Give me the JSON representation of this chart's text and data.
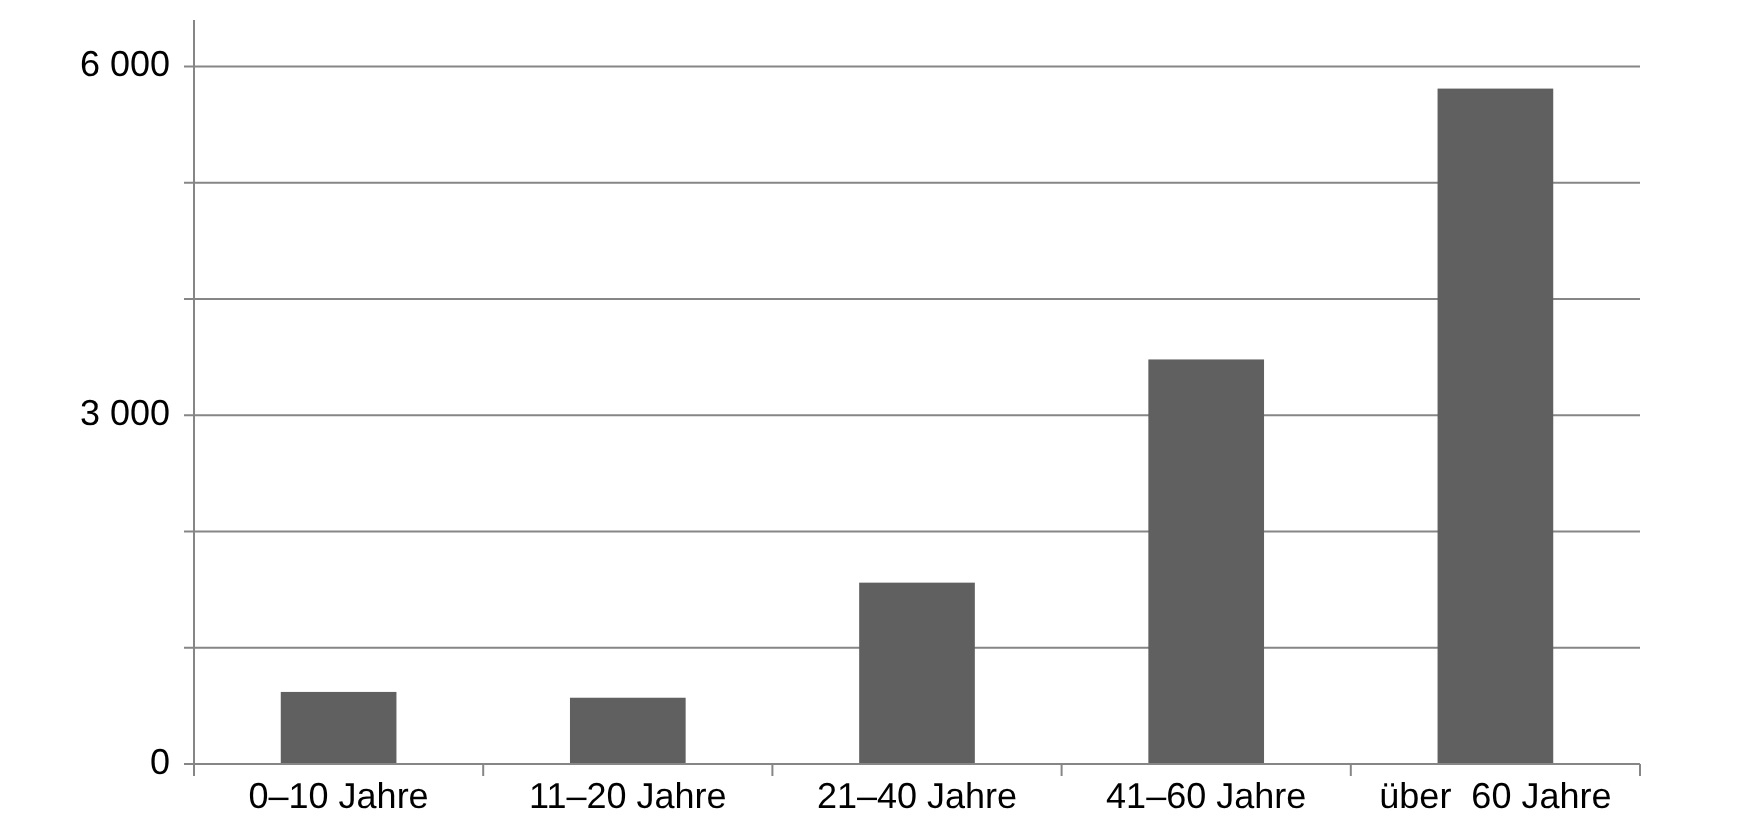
{
  "chart_data": {
    "type": "bar",
    "categories": [
      "0–10 Jahre",
      "11–20 Jahre",
      "21–40 Jahre",
      "41–60 Jahre",
      "über  60 Jahre"
    ],
    "values": [
      620,
      570,
      1560,
      3480,
      5810
    ],
    "color": "#606060",
    "ylim": [
      0,
      6400
    ],
    "yticks": [
      0,
      {
        "value": 1000,
        "label": null
      },
      {
        "value": 2000,
        "label": null
      },
      {
        "value": 3000,
        "label": "3 000"
      },
      {
        "value": 4000,
        "label": null
      },
      {
        "value": 5000,
        "label": null
      },
      {
        "value": 6000,
        "label": "6 000"
      }
    ],
    "grid": "y"
  }
}
